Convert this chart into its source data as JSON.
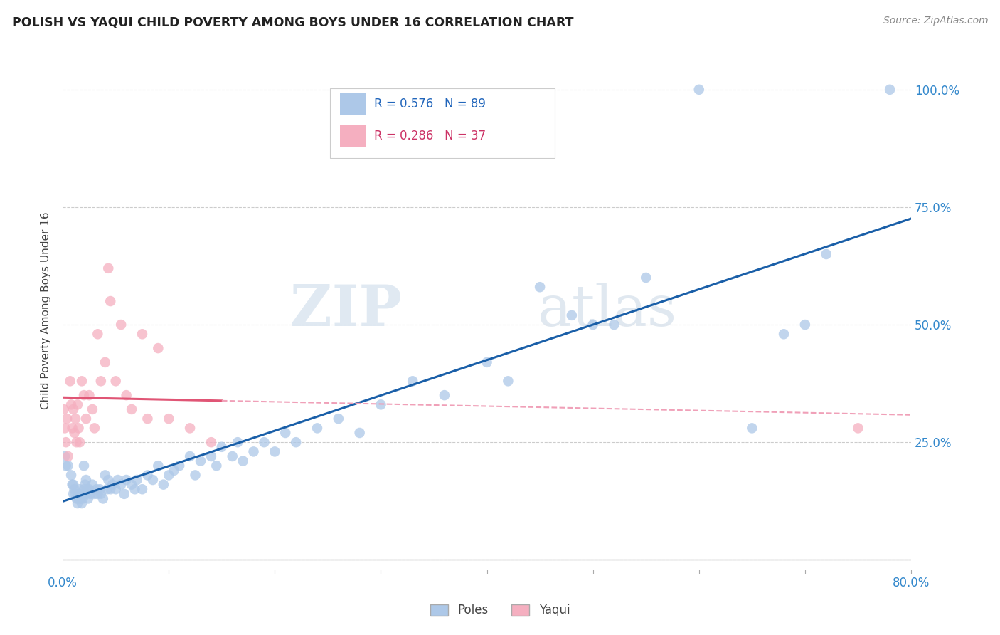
{
  "title": "POLISH VS YAQUI CHILD POVERTY AMONG BOYS UNDER 16 CORRELATION CHART",
  "source": "Source: ZipAtlas.com",
  "ylabel": "Child Poverty Among Boys Under 16",
  "xlim": [
    0.0,
    0.8
  ],
  "ylim": [
    -0.02,
    1.08
  ],
  "yticks": [
    0.0,
    0.25,
    0.5,
    0.75,
    1.0
  ],
  "xticks": [
    0.0,
    0.1,
    0.2,
    0.3,
    0.4,
    0.5,
    0.6,
    0.7,
    0.8
  ],
  "poles_color": "#adc8e8",
  "yaqui_color": "#f5afc0",
  "poles_line_color": "#1a5fa8",
  "yaqui_line_color": "#e05575",
  "yaqui_dash_color": "#f0a0b8",
  "poles_R": 0.576,
  "poles_N": 89,
  "yaqui_R": 0.286,
  "yaqui_N": 37,
  "background_color": "#ffffff",
  "poles_x": [
    0.002,
    0.003,
    0.005,
    0.008,
    0.009,
    0.01,
    0.01,
    0.011,
    0.012,
    0.013,
    0.014,
    0.015,
    0.015,
    0.016,
    0.017,
    0.018,
    0.018,
    0.019,
    0.02,
    0.02,
    0.021,
    0.021,
    0.022,
    0.022,
    0.023,
    0.024,
    0.025,
    0.026,
    0.028,
    0.03,
    0.032,
    0.033,
    0.035,
    0.036,
    0.038,
    0.04,
    0.042,
    0.043,
    0.045,
    0.047,
    0.05,
    0.052,
    0.055,
    0.058,
    0.06,
    0.065,
    0.068,
    0.07,
    0.075,
    0.08,
    0.085,
    0.09,
    0.095,
    0.1,
    0.105,
    0.11,
    0.12,
    0.125,
    0.13,
    0.14,
    0.145,
    0.15,
    0.16,
    0.165,
    0.17,
    0.18,
    0.19,
    0.2,
    0.21,
    0.22,
    0.24,
    0.26,
    0.28,
    0.3,
    0.33,
    0.36,
    0.4,
    0.42,
    0.45,
    0.48,
    0.5,
    0.52,
    0.55,
    0.6,
    0.65,
    0.68,
    0.7,
    0.72,
    0.78
  ],
  "poles_y": [
    0.22,
    0.2,
    0.2,
    0.18,
    0.16,
    0.16,
    0.14,
    0.15,
    0.14,
    0.13,
    0.12,
    0.14,
    0.13,
    0.15,
    0.13,
    0.12,
    0.14,
    0.13,
    0.2,
    0.15,
    0.16,
    0.14,
    0.17,
    0.14,
    0.15,
    0.13,
    0.15,
    0.14,
    0.16,
    0.14,
    0.15,
    0.14,
    0.15,
    0.14,
    0.13,
    0.18,
    0.15,
    0.17,
    0.15,
    0.16,
    0.15,
    0.17,
    0.16,
    0.14,
    0.17,
    0.16,
    0.15,
    0.17,
    0.15,
    0.18,
    0.17,
    0.2,
    0.16,
    0.18,
    0.19,
    0.2,
    0.22,
    0.18,
    0.21,
    0.22,
    0.2,
    0.24,
    0.22,
    0.25,
    0.21,
    0.23,
    0.25,
    0.23,
    0.27,
    0.25,
    0.28,
    0.3,
    0.27,
    0.33,
    0.38,
    0.35,
    0.42,
    0.38,
    0.58,
    0.52,
    0.5,
    0.5,
    0.6,
    1.0,
    0.28,
    0.48,
    0.5,
    0.65,
    1.0
  ],
  "yaqui_x": [
    0.001,
    0.002,
    0.003,
    0.004,
    0.005,
    0.007,
    0.008,
    0.009,
    0.01,
    0.011,
    0.012,
    0.013,
    0.014,
    0.015,
    0.016,
    0.018,
    0.02,
    0.022,
    0.025,
    0.028,
    0.03,
    0.033,
    0.036,
    0.04,
    0.043,
    0.045,
    0.05,
    0.055,
    0.06,
    0.065,
    0.075,
    0.08,
    0.09,
    0.1,
    0.12,
    0.14,
    0.75
  ],
  "yaqui_y": [
    0.32,
    0.28,
    0.25,
    0.3,
    0.22,
    0.38,
    0.33,
    0.28,
    0.32,
    0.27,
    0.3,
    0.25,
    0.33,
    0.28,
    0.25,
    0.38,
    0.35,
    0.3,
    0.35,
    0.32,
    0.28,
    0.48,
    0.38,
    0.42,
    0.62,
    0.55,
    0.38,
    0.5,
    0.35,
    0.32,
    0.48,
    0.3,
    0.45,
    0.3,
    0.28,
    0.25,
    0.28
  ]
}
